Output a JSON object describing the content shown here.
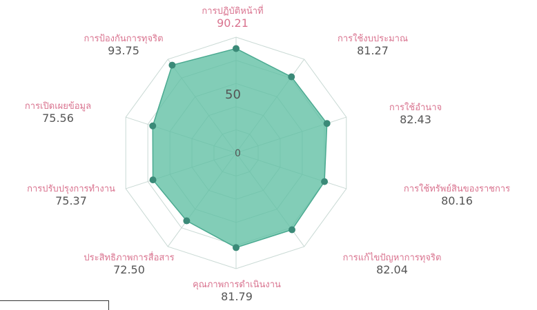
{
  "chart_data": {
    "type": "radar",
    "categories": [
      "การปฏิบัติหน้าที่",
      "การใช้งบประมาณ",
      "การใช้อำนาจ",
      "การใช้ทรัพย์สินของราชการ",
      "การแก้ไขปัญหาการทุจริต",
      "คุณภาพการดำเนินงาน",
      "ประสิทธิภาพการสื่อสาร",
      "การปรับปรุงการทำงาน",
      "การเปิดเผยข้อมูล",
      "การป้องกันการทุจริต"
    ],
    "value_labels": [
      "90.21",
      "81.27",
      "82.43",
      "80.16",
      "82.04",
      "81.79",
      "72.50",
      "75.37",
      "75.56",
      "93.75"
    ],
    "values": [
      90.21,
      81.27,
      82.43,
      80.16,
      82.04,
      81.79,
      72.5,
      75.37,
      75.56,
      93.75
    ],
    "rlim": [
      0,
      100
    ],
    "radial_ticks": [
      0,
      50
    ],
    "radial_tick_labels": [
      "0",
      "50"
    ],
    "grid": true,
    "fill_color": "#5fbfa3",
    "point_color": "#3b8a78",
    "label_color": "#d9738f",
    "value_color": "#555555"
  }
}
